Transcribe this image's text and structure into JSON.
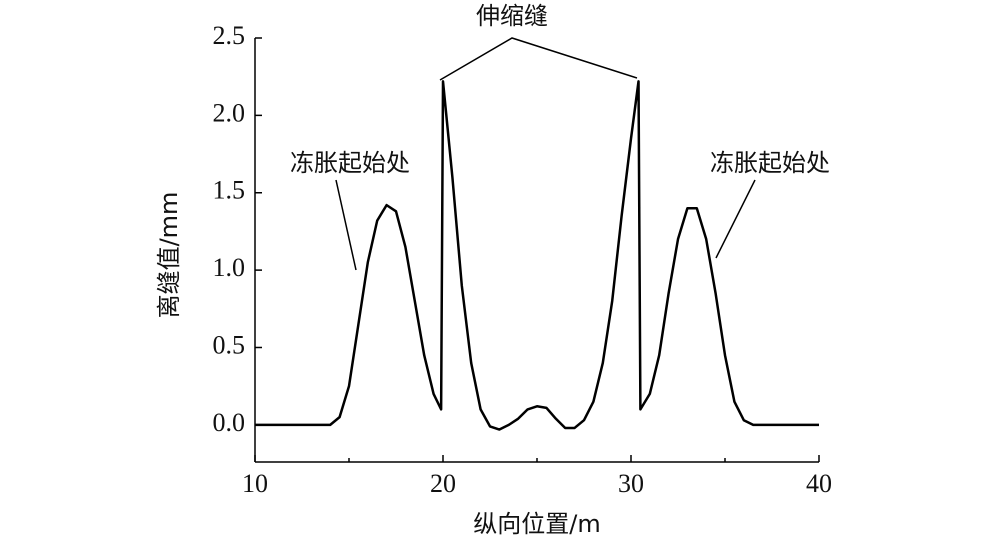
{
  "chart_data": {
    "type": "line",
    "x_label": "纵向位置/m",
    "y_label": "离缝值/mm",
    "x": [
      10,
      11,
      12,
      13,
      14,
      14.5,
      15,
      15.5,
      16,
      16.5,
      17,
      17.5,
      18,
      18.5,
      19,
      19.5,
      19.9,
      20.0,
      20.5,
      21,
      21.5,
      22,
      22.5,
      23,
      23.5,
      24,
      24.5,
      25,
      25.5,
      26,
      26.5,
      27,
      27.5,
      28,
      28.5,
      29,
      29.5,
      30,
      30.4,
      30.5,
      31,
      31.5,
      32,
      32.5,
      33,
      33.5,
      34,
      34.5,
      35,
      35.5,
      36,
      36.5,
      37,
      38,
      39,
      40
    ],
    "series": [
      {
        "color": "#000000",
        "values": [
          0,
          0,
          0,
          0,
          0,
          0.05,
          0.25,
          0.65,
          1.05,
          1.32,
          1.42,
          1.38,
          1.15,
          0.8,
          0.45,
          0.2,
          0.1,
          2.22,
          1.6,
          0.9,
          0.4,
          0.1,
          -0.01,
          -0.03,
          0,
          0.04,
          0.1,
          0.12,
          0.11,
          0.04,
          -0.02,
          -0.02,
          0.03,
          0.15,
          0.4,
          0.8,
          1.35,
          1.85,
          2.22,
          0.1,
          0.2,
          0.45,
          0.85,
          1.2,
          1.4,
          1.4,
          1.2,
          0.85,
          0.45,
          0.15,
          0.03,
          0,
          0,
          0,
          0,
          0
        ]
      }
    ],
    "xlim": [
      10,
      40
    ],
    "xticks": [
      10,
      20,
      30,
      40
    ],
    "xminorticks": [
      15,
      25,
      35
    ],
    "ylim": [
      -0.24,
      2.5
    ],
    "yticks": [
      {
        "value": 0,
        "label": "0.0"
      },
      {
        "value": 0.5,
        "label": "0.5"
      },
      {
        "value": 1,
        "label": "1.0"
      },
      {
        "value": 1.5,
        "label": "1.5"
      },
      {
        "value": 2,
        "label": "2.0"
      },
      {
        "value": 2.5,
        "label": "2.5"
      }
    ],
    "grid": false,
    "annotations": [
      "伸缩缝",
      "冻胀起始处",
      "冻胀起始处"
    ]
  }
}
